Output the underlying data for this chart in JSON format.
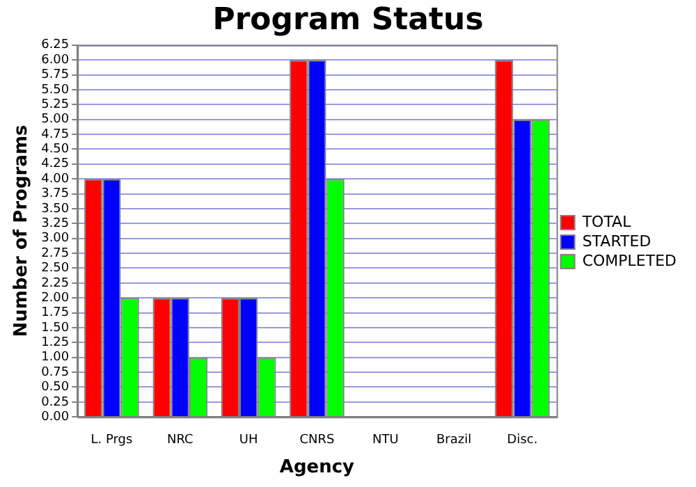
{
  "chart_data": {
    "type": "bar",
    "title": "Program Status",
    "xlabel": "Agency",
    "ylabel": "Number of Programs",
    "categories": [
      "L. Prgs",
      "NRC",
      "UH",
      "CNRS",
      "NTU",
      "Brazil",
      "Disc."
    ],
    "series": [
      {
        "name": "TOTAL",
        "color": "#ff0000",
        "values": [
          4,
          2,
          2,
          6,
          0,
          0,
          6
        ]
      },
      {
        "name": "STARTED",
        "color": "#0000ff",
        "values": [
          4,
          2,
          2,
          6,
          0,
          0,
          5
        ]
      },
      {
        "name": "COMPLETED",
        "color": "#00ff00",
        "values": [
          2,
          1,
          1,
          4,
          0,
          0,
          5
        ]
      }
    ],
    "ylim": [
      0,
      6.25
    ],
    "yticks": [
      {
        "value": 0,
        "label": "0.00"
      },
      {
        "value": 0.25,
        "label": "0.25"
      },
      {
        "value": 0.5,
        "label": "0.50"
      },
      {
        "value": 0.75,
        "label": "0.75"
      },
      {
        "value": 1,
        "label": "1.00"
      },
      {
        "value": 1.25,
        "label": "1.25"
      },
      {
        "value": 1.5,
        "label": "1.50"
      },
      {
        "value": 1.75,
        "label": "1.75"
      },
      {
        "value": 2,
        "label": "2.00"
      },
      {
        "value": 2.25,
        "label": "2.25"
      },
      {
        "value": 2.5,
        "label": "2.50"
      },
      {
        "value": 2.75,
        "label": "2.75"
      },
      {
        "value": 3,
        "label": "3.00"
      },
      {
        "value": 3.25,
        "label": "3.25"
      },
      {
        "value": 3.5,
        "label": "3.50"
      },
      {
        "value": 3.75,
        "label": "3.75"
      },
      {
        "value": 4,
        "label": "4.00"
      },
      {
        "value": 4.25,
        "label": "4.25"
      },
      {
        "value": 4.5,
        "label": "4.50"
      },
      {
        "value": 4.75,
        "label": "4.75"
      },
      {
        "value": 5,
        "label": "5.00"
      },
      {
        "value": 5.25,
        "label": "5.25"
      },
      {
        "value": 5.5,
        "label": "5.50"
      },
      {
        "value": 5.75,
        "label": "5.75"
      },
      {
        "value": 6,
        "label": "6.00"
      },
      {
        "value": 6.25,
        "label": "6.25"
      }
    ],
    "grid": "y",
    "legend": "right"
  }
}
